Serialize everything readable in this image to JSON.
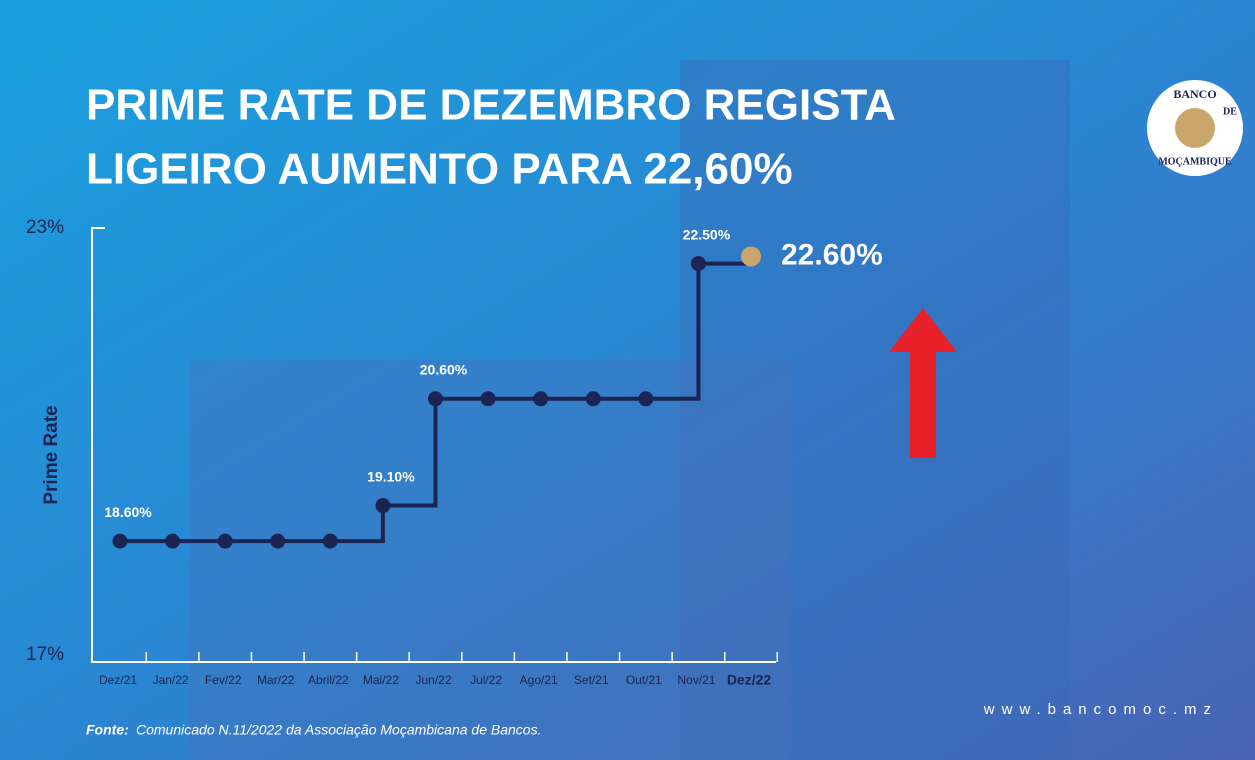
{
  "chart_data": {
    "type": "line",
    "title": [
      "PRIME RATE DE DEZEMBRO REGISTA",
      "LIGEIRO AUMENTO PARA 22,60%"
    ],
    "y_label": "Prime Rate",
    "categories": [
      "Dez/21",
      "Jan/22",
      "Fev/22",
      "Mar/22",
      "Abril/22",
      "Mai/22",
      "Jun/22",
      "Jul/22",
      "Ago/21",
      "Set/21",
      "Out/21",
      "Nov/21",
      "Dez/22"
    ],
    "values": [
      18.6,
      18.6,
      18.6,
      18.6,
      18.6,
      19.1,
      20.6,
      20.6,
      20.6,
      20.6,
      20.6,
      22.5,
      22.6
    ],
    "value_labels": [
      "18.60%",
      null,
      null,
      null,
      null,
      "19.10%",
      "20.60%",
      null,
      null,
      null,
      null,
      "22.50%",
      "22.60%"
    ],
    "color": "#1b2452",
    "highlight_color": "#c9a76c",
    "ylim": [
      17,
      23
    ],
    "yticks": [
      {
        "value": 17,
        "label": "17%"
      },
      {
        "value": 23,
        "label": "23%"
      }
    ]
  },
  "source_label": "Fonte:",
  "source": "Comunicado N.11/2022 da Associação Moçambicana de Bancos.",
  "website": "www.bancomoc.mz",
  "logo": {
    "top": "BANCO",
    "middle": "DE",
    "bottom": "MOÇAMBIQUE"
  }
}
